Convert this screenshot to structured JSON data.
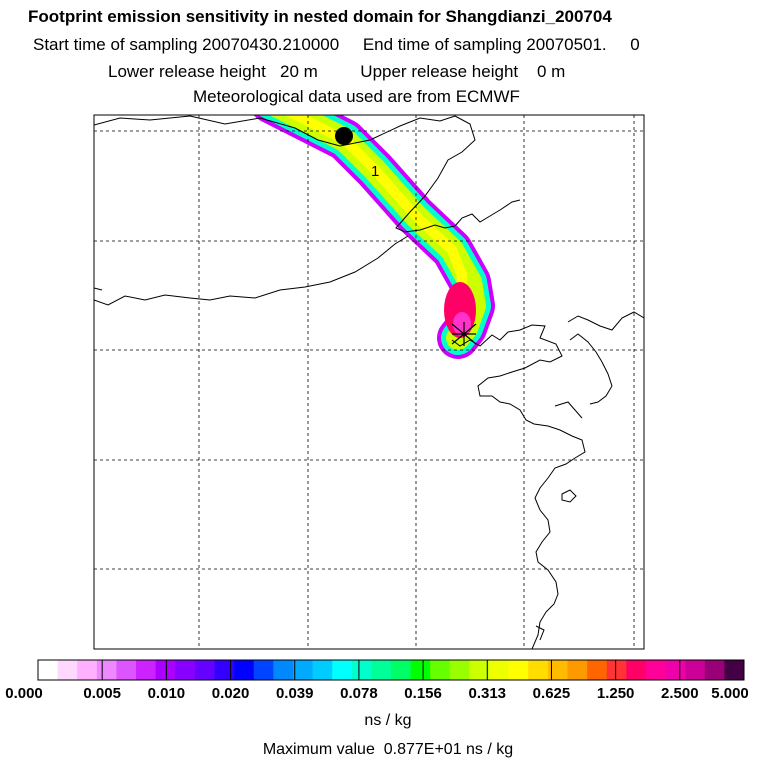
{
  "header": {
    "title": "Footprint emission sensitivity in nested domain for Shangdianzi_200704",
    "sampling_line": "Start time of sampling 20070430.210000     End time of sampling 20070501.     0",
    "release_line": "Lower release height   20 m         Upper release height    0 m",
    "met_line": "Meteorological data used are from ECMWF"
  },
  "map": {
    "marker_label": "1",
    "colors": {
      "plume_outer": "#cc00ff",
      "plume_mid": "#00ffcc",
      "plume_inner": "#ccff00",
      "plume_core": "#ffff00",
      "hotspot": "#ff0066",
      "hotspot_center": "#ff33cc"
    }
  },
  "colorbar": {
    "colors": [
      "#ffffff",
      "#ffd8ff",
      "#ffb0ff",
      "#ee88ff",
      "#dd55ff",
      "#cc22ff",
      "#aa00ff",
      "#8800ff",
      "#6600ff",
      "#3300ff",
      "#0000ff",
      "#0044ff",
      "#0088ff",
      "#00aaff",
      "#00ccff",
      "#00ffff",
      "#00ffcc",
      "#00ff99",
      "#00ff66",
      "#00ff00",
      "#66ff00",
      "#99ff00",
      "#ccff00",
      "#eeff00",
      "#ffff00",
      "#ffdd00",
      "#ffbb00",
      "#ff9900",
      "#ff6600",
      "#ff3333",
      "#ff0066",
      "#ff0099",
      "#ee00aa",
      "#cc0099",
      "#990077",
      "#440044"
    ],
    "ticks": [
      "0.000",
      "0.005",
      "0.010",
      "0.020",
      "0.039",
      "0.078",
      "0.156",
      "0.313",
      "0.625",
      "1.250",
      "2.500",
      "5.000"
    ],
    "unit": "ns / kg",
    "max_label": "Maximum value  0.877E+01 ns / kg"
  }
}
